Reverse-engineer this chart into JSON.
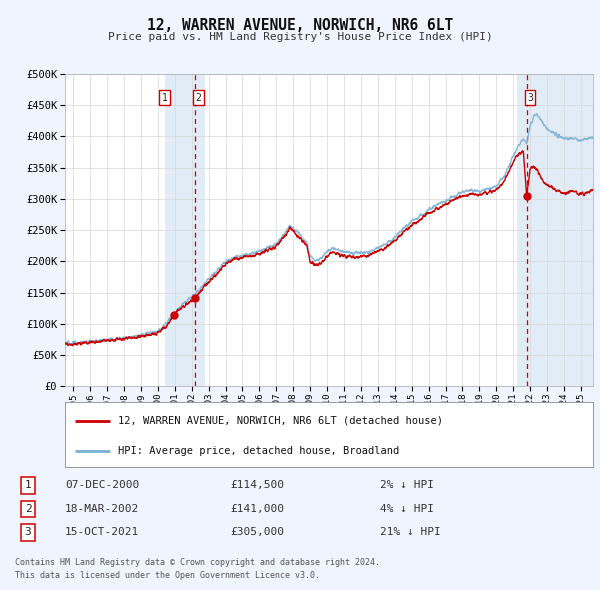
{
  "title": "12, WARREN AVENUE, NORWICH, NR6 6LT",
  "subtitle": "Price paid vs. HM Land Registry's House Price Index (HPI)",
  "legend_line1": "12, WARREN AVENUE, NORWICH, NR6 6LT (detached house)",
  "legend_line2": "HPI: Average price, detached house, Broadland",
  "transactions": [
    {
      "num": 1,
      "date": "07-DEC-2000",
      "price": 114500,
      "pct": "2% ↓ HPI",
      "x_year": 2000.93
    },
    {
      "num": 2,
      "date": "18-MAR-2002",
      "price": 141000,
      "pct": "4% ↓ HPI",
      "x_year": 2002.21
    },
    {
      "num": 3,
      "date": "15-OCT-2021",
      "price": 305000,
      "pct": "21% ↓ HPI",
      "x_year": 2021.79
    }
  ],
  "footnote1": "Contains HM Land Registry data © Crown copyright and database right 2024.",
  "footnote2": "This data is licensed under the Open Government Licence v3.0.",
  "ylim": [
    0,
    500000
  ],
  "yticks": [
    0,
    50000,
    100000,
    150000,
    200000,
    250000,
    300000,
    350000,
    400000,
    450000,
    500000
  ],
  "xlim_start": 1994.5,
  "xlim_end": 2025.7,
  "bg_color": "#f0f4ff",
  "plot_bg": "#ffffff",
  "red_line_color": "#cc0000",
  "blue_line_color": "#7ab0d4",
  "grid_color": "#d8d8d8",
  "hpi_anchors": [
    [
      1995.0,
      69000
    ],
    [
      1996.0,
      72000
    ],
    [
      1997.0,
      75000
    ],
    [
      1998.0,
      78000
    ],
    [
      1999.0,
      82000
    ],
    [
      2000.0,
      88000
    ],
    [
      2000.5,
      100000
    ],
    [
      2000.93,
      117000
    ],
    [
      2001.5,
      132000
    ],
    [
      2002.21,
      147000
    ],
    [
      2002.5,
      158000
    ],
    [
      2003.0,
      172000
    ],
    [
      2003.5,
      186000
    ],
    [
      2004.0,
      200000
    ],
    [
      2004.5,
      207000
    ],
    [
      2005.0,
      210000
    ],
    [
      2005.5,
      212000
    ],
    [
      2006.0,
      216000
    ],
    [
      2006.5,
      222000
    ],
    [
      2007.0,
      228000
    ],
    [
      2007.5,
      245000
    ],
    [
      2007.8,
      257000
    ],
    [
      2008.2,
      248000
    ],
    [
      2008.8,
      230000
    ],
    [
      2009.0,
      208000
    ],
    [
      2009.3,
      200000
    ],
    [
      2009.7,
      205000
    ],
    [
      2010.0,
      215000
    ],
    [
      2010.3,
      222000
    ],
    [
      2010.7,
      218000
    ],
    [
      2011.0,
      215000
    ],
    [
      2011.5,
      214000
    ],
    [
      2012.0,
      214000
    ],
    [
      2012.5,
      216000
    ],
    [
      2013.0,
      222000
    ],
    [
      2013.5,
      228000
    ],
    [
      2014.0,
      238000
    ],
    [
      2014.5,
      252000
    ],
    [
      2015.0,
      264000
    ],
    [
      2015.5,
      272000
    ],
    [
      2016.0,
      282000
    ],
    [
      2016.5,
      290000
    ],
    [
      2017.0,
      296000
    ],
    [
      2017.5,
      305000
    ],
    [
      2018.0,
      310000
    ],
    [
      2018.5,
      314000
    ],
    [
      2019.0,
      312000
    ],
    [
      2019.5,
      316000
    ],
    [
      2020.0,
      320000
    ],
    [
      2020.5,
      338000
    ],
    [
      2021.0,
      368000
    ],
    [
      2021.3,
      385000
    ],
    [
      2021.6,
      395000
    ],
    [
      2021.79,
      388000
    ],
    [
      2022.0,
      418000
    ],
    [
      2022.3,
      438000
    ],
    [
      2022.5,
      430000
    ],
    [
      2022.8,
      418000
    ],
    [
      2023.0,
      412000
    ],
    [
      2023.3,
      407000
    ],
    [
      2023.6,
      402000
    ],
    [
      2024.0,
      396000
    ],
    [
      2024.5,
      398000
    ],
    [
      2025.0,
      393000
    ],
    [
      2025.5,
      398000
    ]
  ],
  "price_anchors": [
    [
      1995.0,
      67000
    ],
    [
      1996.0,
      70000
    ],
    [
      1997.0,
      73000
    ],
    [
      1998.0,
      76000
    ],
    [
      1999.0,
      80000
    ],
    [
      2000.0,
      85000
    ],
    [
      2000.5,
      97000
    ],
    [
      2000.93,
      114500
    ],
    [
      2001.5,
      127000
    ],
    [
      2002.21,
      141000
    ],
    [
      2002.5,
      153000
    ],
    [
      2003.0,
      166000
    ],
    [
      2003.5,
      180000
    ],
    [
      2004.0,
      195000
    ],
    [
      2004.5,
      203000
    ],
    [
      2005.0,
      206000
    ],
    [
      2005.5,
      208000
    ],
    [
      2006.0,
      212000
    ],
    [
      2006.5,
      218000
    ],
    [
      2007.0,
      224000
    ],
    [
      2007.5,
      240000
    ],
    [
      2007.8,
      253000
    ],
    [
      2008.2,
      243000
    ],
    [
      2008.8,
      224000
    ],
    [
      2009.0,
      200000
    ],
    [
      2009.3,
      193000
    ],
    [
      2009.7,
      198000
    ],
    [
      2010.0,
      208000
    ],
    [
      2010.3,
      215000
    ],
    [
      2010.7,
      211000
    ],
    [
      2011.0,
      208000
    ],
    [
      2011.5,
      207000
    ],
    [
      2012.0,
      208000
    ],
    [
      2012.5,
      210000
    ],
    [
      2013.0,
      216000
    ],
    [
      2013.5,
      222000
    ],
    [
      2014.0,
      232000
    ],
    [
      2014.5,
      247000
    ],
    [
      2015.0,
      258000
    ],
    [
      2015.5,
      267000
    ],
    [
      2016.0,
      277000
    ],
    [
      2016.5,
      284000
    ],
    [
      2017.0,
      291000
    ],
    [
      2017.5,
      299000
    ],
    [
      2018.0,
      305000
    ],
    [
      2018.5,
      308000
    ],
    [
      2019.0,
      306000
    ],
    [
      2019.5,
      310000
    ],
    [
      2020.0,
      314000
    ],
    [
      2020.5,
      330000
    ],
    [
      2021.0,
      358000
    ],
    [
      2021.3,
      372000
    ],
    [
      2021.6,
      375000
    ],
    [
      2021.79,
      305000
    ],
    [
      2022.0,
      348000
    ],
    [
      2022.2,
      352000
    ],
    [
      2022.5,
      342000
    ],
    [
      2022.8,
      328000
    ],
    [
      2023.0,
      322000
    ],
    [
      2023.3,
      318000
    ],
    [
      2023.6,
      314000
    ],
    [
      2024.0,
      308000
    ],
    [
      2024.5,
      313000
    ],
    [
      2025.0,
      307000
    ],
    [
      2025.5,
      312000
    ]
  ]
}
